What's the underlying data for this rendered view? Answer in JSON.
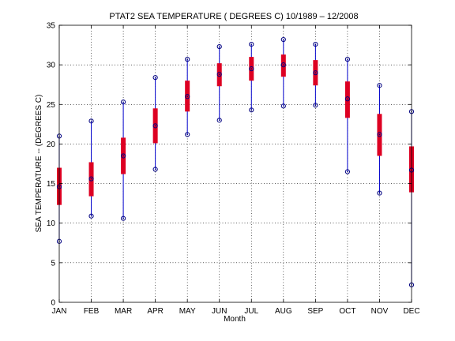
{
  "chart_data": {
    "type": "boxplot",
    "title": "PTAT2  SEA TEMPERATURE ( DEGREES C) 10/1989 – 12/2008",
    "xlabel": "Month",
    "ylabel": "SEA TEMPERATURE -- (DEGREES C)",
    "ylim": [
      0,
      35
    ],
    "yticks": [
      0,
      5,
      10,
      15,
      20,
      25,
      30,
      35
    ],
    "grid": true,
    "categories": [
      "JAN",
      "FEB",
      "MAR",
      "APR",
      "MAY",
      "JUN",
      "JUL",
      "AUG",
      "SEP",
      "OCT",
      "NOV",
      "DEC"
    ],
    "series": [
      {
        "min": [
          7.7,
          10.9,
          10.6,
          16.8,
          21.2,
          23.0,
          24.3,
          24.8,
          24.9,
          16.5,
          13.8,
          2.2
        ],
        "q1": [
          12.3,
          13.4,
          16.2,
          20.1,
          24.1,
          27.3,
          28.0,
          28.5,
          27.4,
          23.3,
          18.5,
          13.9
        ],
        "median": [
          14.6,
          15.6,
          18.5,
          22.3,
          26.0,
          28.8,
          29.5,
          30.0,
          29.0,
          25.7,
          21.2,
          16.7
        ],
        "q3": [
          17.0,
          17.7,
          20.8,
          24.5,
          28.0,
          30.2,
          31.0,
          31.3,
          30.6,
          27.9,
          23.8,
          19.7
        ],
        "max": [
          21.0,
          22.9,
          25.3,
          28.4,
          30.7,
          32.3,
          32.6,
          33.2,
          32.6,
          30.7,
          27.4,
          24.1
        ]
      }
    ],
    "colors": {
      "box": "#dd0022",
      "whisker": "#0000cc",
      "marker": "#000080"
    }
  }
}
